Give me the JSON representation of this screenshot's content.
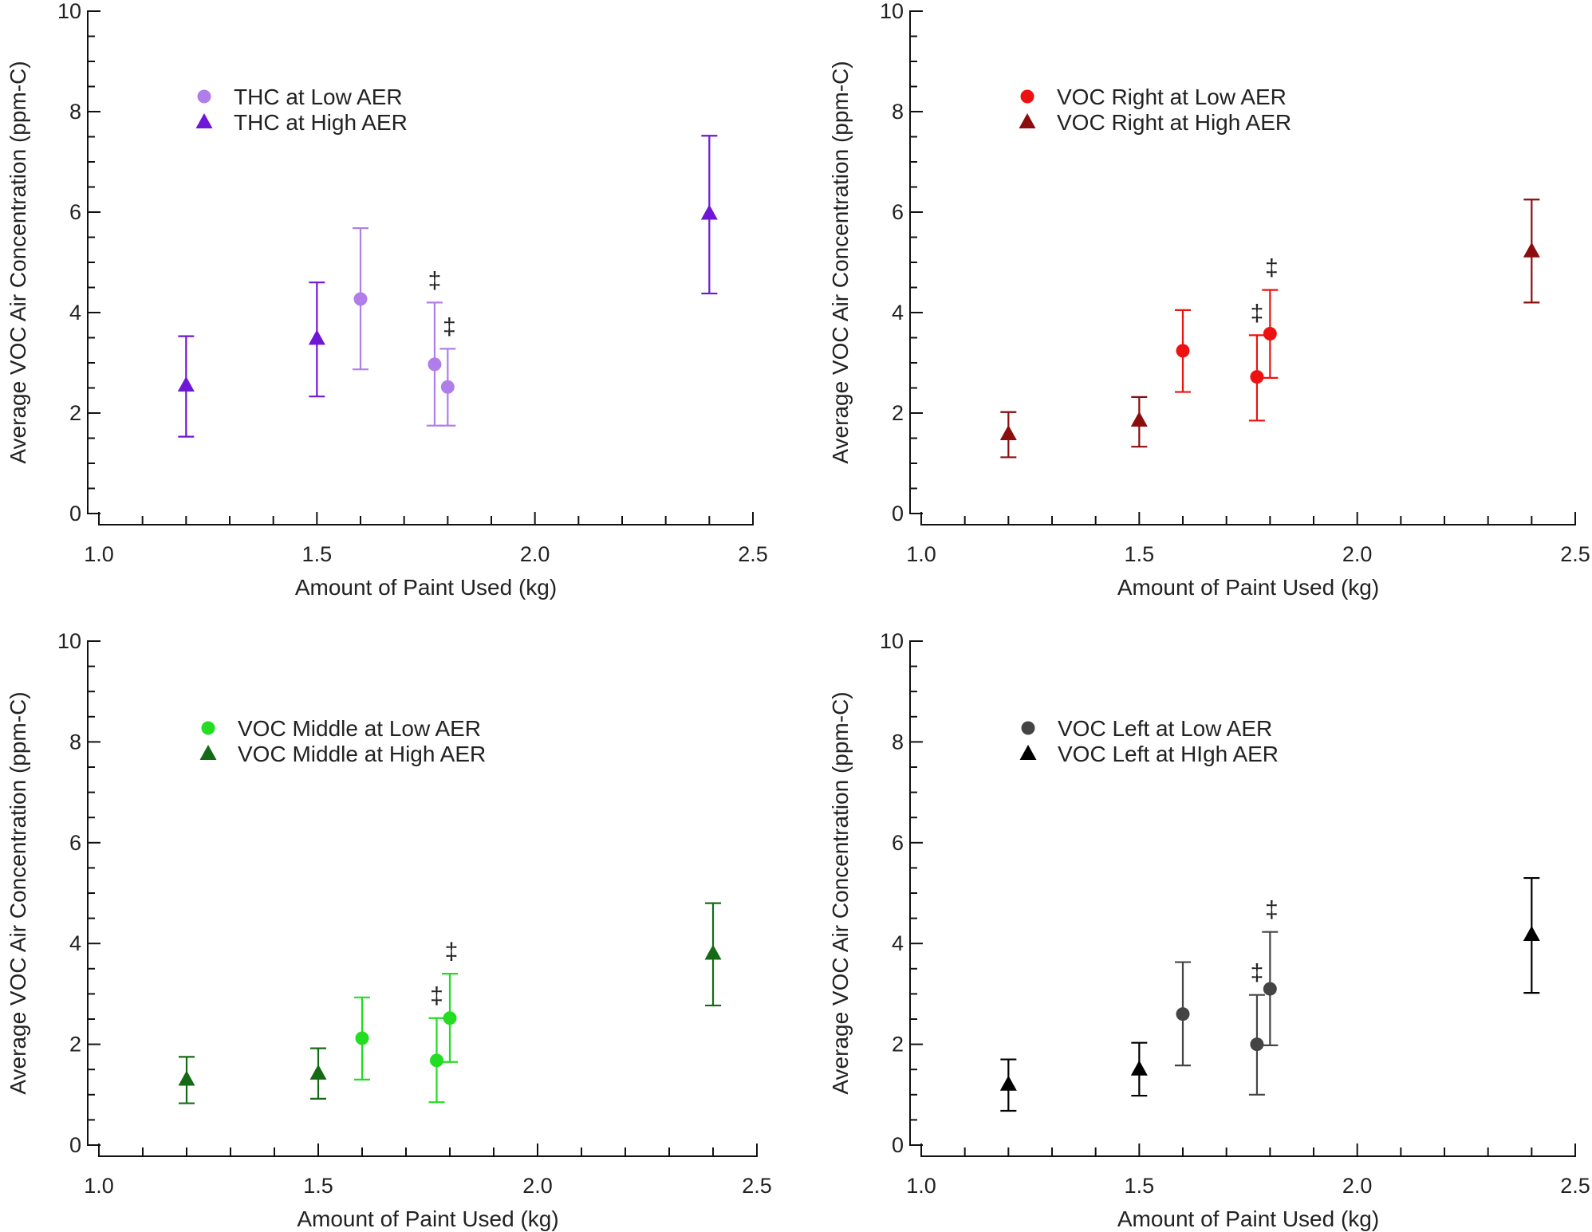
{
  "chart_data": [
    {
      "type": "scatter",
      "panel": "top-left",
      "title": "",
      "xlabel": "Amount of Paint Used (kg)",
      "ylabel": "Average VOC Air Concentration (ppm-C)",
      "xlim": [
        1.0,
        2.5
      ],
      "ylim": [
        0,
        10
      ],
      "xticks": [
        "1.0",
        "1.5",
        "2.0",
        "2.5"
      ],
      "yticks": [
        "0",
        "2",
        "4",
        "6",
        "8",
        "10"
      ],
      "legend_position": "top-left",
      "series": [
        {
          "name": "THC at Low AER",
          "marker": "circle",
          "color": "#b07ee8",
          "points": [
            {
              "x": 1.6,
              "y": 4.27,
              "lo": 2.87,
              "hi": 5.68,
              "note": ""
            },
            {
              "x": 1.77,
              "y": 2.97,
              "lo": 1.75,
              "hi": 4.2,
              "note": "‡"
            },
            {
              "x": 1.8,
              "y": 2.52,
              "lo": 1.75,
              "hi": 3.28,
              "note": "‡"
            }
          ]
        },
        {
          "name": "THC at High AER",
          "marker": "triangle",
          "color": "#6e17d6",
          "points": [
            {
              "x": 1.2,
              "y": 2.55,
              "lo": 1.53,
              "hi": 3.53,
              "note": ""
            },
            {
              "x": 1.5,
              "y": 3.48,
              "lo": 2.33,
              "hi": 4.6,
              "note": ""
            },
            {
              "x": 2.4,
              "y": 5.97,
              "lo": 4.38,
              "hi": 7.52,
              "note": ""
            }
          ]
        }
      ]
    },
    {
      "type": "scatter",
      "panel": "top-right",
      "title": "",
      "xlabel": "Amount of Paint Used (kg)",
      "ylabel": "Average VOC Air Concentration (ppm-C)",
      "xlim": [
        1.0,
        2.5
      ],
      "ylim": [
        0,
        10
      ],
      "xticks": [
        "1.0",
        "1.5",
        "2.0",
        "2.5"
      ],
      "yticks": [
        "0",
        "2",
        "4",
        "6",
        "8",
        "10"
      ],
      "legend_position": "top-left",
      "series": [
        {
          "name": "VOC Right at Low AER",
          "marker": "circle",
          "color": "#ee1111",
          "points": [
            {
              "x": 1.6,
              "y": 3.24,
              "lo": 2.42,
              "hi": 4.05,
              "note": ""
            },
            {
              "x": 1.77,
              "y": 2.72,
              "lo": 1.85,
              "hi": 3.55,
              "note": "‡"
            },
            {
              "x": 1.8,
              "y": 3.58,
              "lo": 2.7,
              "hi": 4.45,
              "note": "‡"
            }
          ]
        },
        {
          "name": "VOC Right at High AER",
          "marker": "triangle",
          "color": "#8b0d0d",
          "points": [
            {
              "x": 1.2,
              "y": 1.58,
              "lo": 1.12,
              "hi": 2.02,
              "note": ""
            },
            {
              "x": 1.5,
              "y": 1.85,
              "lo": 1.33,
              "hi": 2.32,
              "note": ""
            },
            {
              "x": 2.4,
              "y": 5.22,
              "lo": 4.2,
              "hi": 6.25,
              "note": ""
            }
          ]
        }
      ]
    },
    {
      "type": "scatter",
      "panel": "bottom-left",
      "title": "",
      "xlabel": "Amount of Paint Used (kg)",
      "ylabel": "Average VOC Air Concentration (ppm-C)",
      "xlim": [
        1.0,
        2.5
      ],
      "ylim": [
        0,
        10
      ],
      "xticks": [
        "1.0",
        "1.5",
        "2.0",
        "2.5"
      ],
      "yticks": [
        "0",
        "2",
        "4",
        "6",
        "8",
        "10"
      ],
      "legend_position": "top-left",
      "series": [
        {
          "name": "VOC Middle at Low AER",
          "marker": "circle",
          "color": "#22dd22",
          "points": [
            {
              "x": 1.6,
              "y": 2.12,
              "lo": 1.3,
              "hi": 2.93,
              "note": ""
            },
            {
              "x": 1.77,
              "y": 1.68,
              "lo": 0.85,
              "hi": 2.52,
              "note": "‡"
            },
            {
              "x": 1.8,
              "y": 2.52,
              "lo": 1.65,
              "hi": 3.4,
              "note": "‡"
            }
          ]
        },
        {
          "name": "VOC Middle at High AER",
          "marker": "triangle",
          "color": "#156b15",
          "points": [
            {
              "x": 1.2,
              "y": 1.3,
              "lo": 0.83,
              "hi": 1.75,
              "note": ""
            },
            {
              "x": 1.5,
              "y": 1.42,
              "lo": 0.92,
              "hi": 1.92,
              "note": ""
            },
            {
              "x": 2.4,
              "y": 3.8,
              "lo": 2.77,
              "hi": 4.8,
              "note": ""
            }
          ]
        }
      ]
    },
    {
      "type": "scatter",
      "panel": "bottom-right",
      "title": "",
      "xlabel": "Amount of Paint Used (kg)",
      "ylabel": "Average VOC Air Concentration (ppm-C)",
      "xlim": [
        1.0,
        2.5
      ],
      "ylim": [
        0,
        10
      ],
      "xticks": [
        "1.0",
        "1.5",
        "2.0",
        "2.5"
      ],
      "yticks": [
        "0",
        "2",
        "4",
        "6",
        "8",
        "10"
      ],
      "legend_position": "top-left",
      "series": [
        {
          "name": "VOC Left at Low AER",
          "marker": "circle",
          "color": "#444444",
          "points": [
            {
              "x": 1.6,
              "y": 2.6,
              "lo": 1.58,
              "hi": 3.63,
              "note": ""
            },
            {
              "x": 1.77,
              "y": 2.0,
              "lo": 1.0,
              "hi": 2.98,
              "note": "‡"
            },
            {
              "x": 1.8,
              "y": 3.1,
              "lo": 1.98,
              "hi": 4.23,
              "note": "‡"
            }
          ]
        },
        {
          "name": "VOC Left at HIgh AER",
          "marker": "triangle",
          "color": "#000000",
          "points": [
            {
              "x": 1.2,
              "y": 1.2,
              "lo": 0.68,
              "hi": 1.7,
              "note": ""
            },
            {
              "x": 1.5,
              "y": 1.5,
              "lo": 0.98,
              "hi": 2.03,
              "note": ""
            },
            {
              "x": 2.4,
              "y": 4.17,
              "lo": 3.02,
              "hi": 5.3,
              "note": ""
            }
          ]
        }
      ]
    }
  ]
}
